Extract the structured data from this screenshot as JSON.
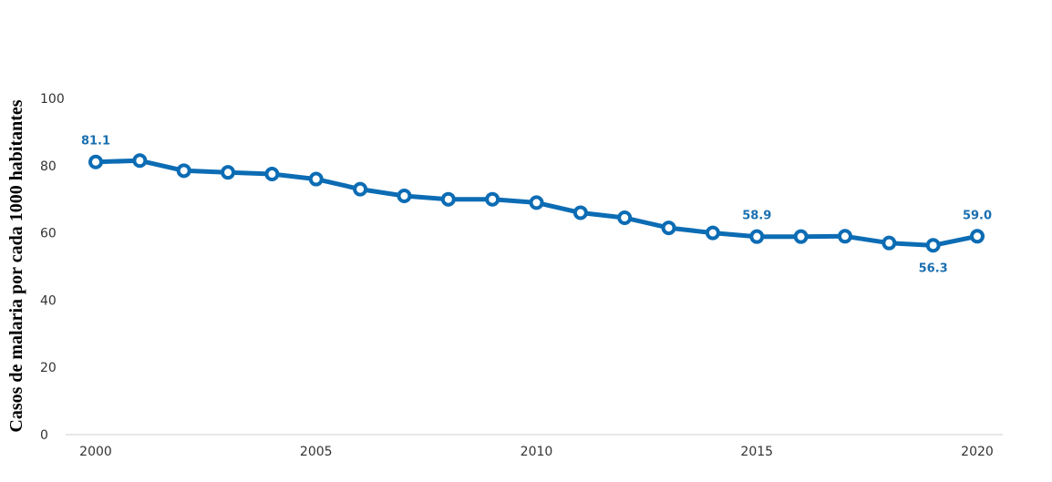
{
  "chart_data": {
    "type": "line",
    "title": "",
    "xlabel": "",
    "ylabel": "Casos de malaria por cada 1000 habitantes",
    "xlim": [
      2000,
      2020
    ],
    "ylim": [
      0,
      100
    ],
    "x_ticks": [
      "2000",
      "2005",
      "2010",
      "2015",
      "2020"
    ],
    "y_ticks": [
      "0",
      "20",
      "40",
      "60",
      "80",
      "100"
    ],
    "grid": false,
    "line_color": "#0c6cb4",
    "label_color": "#1a6fb0",
    "series": [
      {
        "x": [
          2000,
          2001,
          2002,
          2003,
          2004,
          2005,
          2006,
          2007,
          2008,
          2009,
          2010,
          2011,
          2012,
          2013,
          2014,
          2015,
          2016,
          2017,
          2018,
          2019,
          2020
        ],
        "values": [
          81.1,
          81.5,
          78.5,
          78.0,
          77.5,
          76.0,
          73.0,
          71.0,
          70.0,
          70.0,
          69.0,
          66.0,
          64.5,
          61.5,
          60.0,
          58.9,
          58.9,
          59.0,
          57.0,
          56.3,
          59.0
        ]
      }
    ],
    "annotations": [
      {
        "x": 2000,
        "text": "81.1",
        "pos": "above"
      },
      {
        "x": 2015,
        "text": "58.9",
        "pos": "above"
      },
      {
        "x": 2019,
        "text": "56.3",
        "pos": "below"
      },
      {
        "x": 2020,
        "text": "59.0",
        "pos": "above"
      }
    ]
  }
}
